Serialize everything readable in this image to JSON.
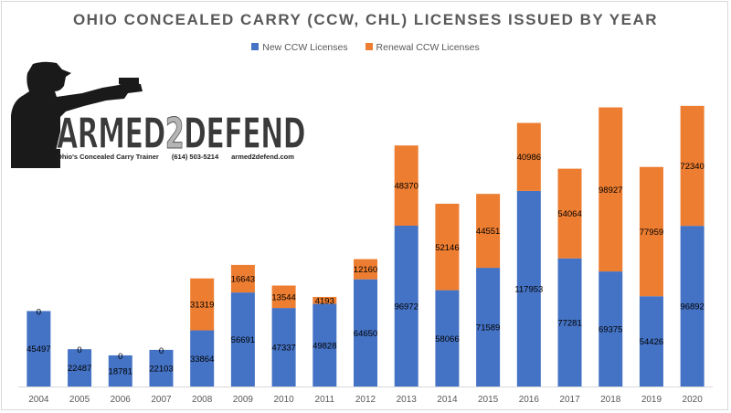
{
  "chart_data": {
    "type": "bar",
    "stacked": true,
    "title": "OHIO CONCEALED CARRY (CCW, CHL) LICENSES ISSUED BY YEAR",
    "categories": [
      "2004",
      "2005",
      "2006",
      "2007",
      "2008",
      "2009",
      "2010",
      "2011",
      "2012",
      "2013",
      "2014",
      "2015",
      "2016",
      "2017",
      "2018",
      "2019",
      "2020"
    ],
    "series": [
      {
        "name": "New CCW Licenses",
        "color": "#4472c4",
        "values": [
          45497,
          22487,
          18781,
          22103,
          33864,
          56691,
          47337,
          49828,
          64650,
          96972,
          58066,
          71589,
          117953,
          77281,
          69375,
          54426,
          96892
        ]
      },
      {
        "name": "Renewal CCW Licenses",
        "color": "#ed7d31",
        "values": [
          0,
          0,
          0,
          0,
          31319,
          16643,
          13544,
          4193,
          12160,
          48370,
          52146,
          44551,
          40986,
          54064,
          98927,
          77959,
          72340
        ]
      }
    ],
    "ylim": [
      0,
      200000
    ],
    "grid": false,
    "legend_position": "top"
  },
  "logo": {
    "brand_left": "ARMED",
    "brand_num": "2",
    "brand_right": "DEFEND",
    "tagline": "Ohio's Concealed Carry Trainer",
    "phone": "(614) 503-5214",
    "website": "armed2defend.com",
    "icon": "shooter-silhouette"
  }
}
